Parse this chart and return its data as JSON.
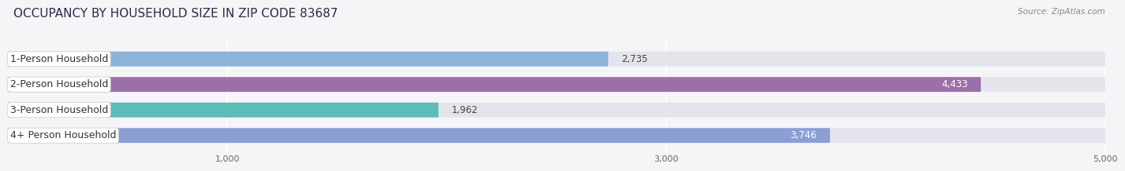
{
  "title": "OCCUPANCY BY HOUSEHOLD SIZE IN ZIP CODE 83687",
  "source": "Source: ZipAtlas.com",
  "categories": [
    "1-Person Household",
    "2-Person Household",
    "3-Person Household",
    "4+ Person Household"
  ],
  "values": [
    2735,
    4433,
    1962,
    3746
  ],
  "bar_colors": [
    "#8ab4d9",
    "#9b6fa8",
    "#5bbcb8",
    "#8b9fd4"
  ],
  "bar_bg_color": "#e4e4ec",
  "xlim_start": 0,
  "xlim_end": 5000,
  "xticks": [
    1000,
    3000,
    5000
  ],
  "label_fontsize": 9,
  "value_fontsize": 8.5,
  "title_fontsize": 11,
  "background_color": "#f5f5f8",
  "bar_height": 0.58,
  "label_text_color": "#333333",
  "value_outside_color": "#444444",
  "value_inside_color": "#ffffff"
}
